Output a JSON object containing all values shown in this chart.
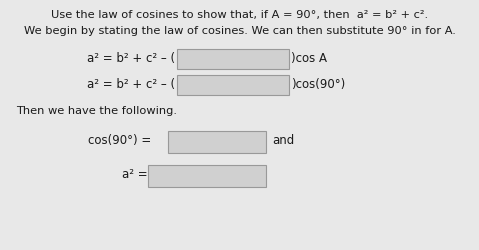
{
  "title_line": "Use the law of cosines to show that, if A = 90°, then  a² = b² + c².",
  "subtitle_line": "We begin by stating the law of cosines. We can then substitute 90° in for A.",
  "eq1_left": "a² = b² + c² – (",
  "eq1_right": ")cos A",
  "eq2_left": "a² = b² + c² – (",
  "eq2_right": ")cos(90°)",
  "then_line": "Then we have the following.",
  "cos_label": "cos(90°) =",
  "and_label": "and",
  "a2_label": "a² =",
  "bg_color": "#e8e8e8",
  "box_fill_color": "#d0d0d0",
  "box_edge_color": "#999999",
  "text_color": "#1a1a1a",
  "title_fontsize": 8.2,
  "body_fontsize": 8.2,
  "eq_fontsize": 8.5
}
